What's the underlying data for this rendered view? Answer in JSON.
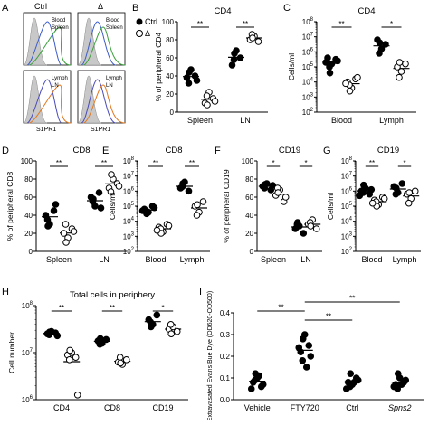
{
  "panel_letters": [
    "A",
    "B",
    "C",
    "D",
    "E",
    "F",
    "G",
    "H",
    "I"
  ],
  "panel_a": {
    "ctrl_label": "Ctrl",
    "delta_label": "Δ",
    "xlabel": "S1PR1",
    "top_legend": [
      "Blood",
      "Spleen"
    ],
    "bottom_legend": [
      "Lymph",
      "LN"
    ],
    "colors": {
      "blood": "#3c5cc8",
      "spleen": "#3ca03c",
      "lymph": "#4a4ab8",
      "ln": "#e07820",
      "iso": "#c8c8c8"
    }
  },
  "legend_b": {
    "ctrl": "Ctrl",
    "delta": "Δ"
  },
  "chart_data": [
    {
      "id": "B",
      "type": "scatter",
      "title": "CD4",
      "ylabel": "% of peripheral CD4",
      "categories": [
        "Spleen",
        "LN"
      ],
      "ylim": [
        0,
        100
      ],
      "yticks": [
        0,
        20,
        40,
        60,
        80,
        100
      ],
      "log": false,
      "series": [
        {
          "name": "Ctrl",
          "values": [
            [
              38,
              47,
              40,
              32,
              44,
              35
            ],
            [
              52,
              68,
              60,
              58,
              65
            ]
          ]
        },
        {
          "name": "Δ",
          "values": [
            [
              10,
              22,
              15,
              18,
              8,
              12
            ],
            [
              80,
              84,
              78,
              86,
              82
            ]
          ]
        }
      ],
      "sig": [
        "**",
        "**"
      ]
    },
    {
      "id": "C",
      "type": "scatter",
      "title": "CD4",
      "ylabel": "Cells/ml",
      "categories": [
        "Blood",
        "Lymph"
      ],
      "ylim": [
        2,
        8
      ],
      "yticks": [
        2,
        3,
        4,
        5,
        6,
        7,
        8
      ],
      "log": true,
      "series": [
        {
          "name": "Ctrl",
          "values": [
            [
              5.6,
              5.2,
              5.5,
              5.0,
              4.6,
              5.4,
              5.3
            ],
            [
              6.8,
              6.2,
              6.5,
              5.9,
              6.6
            ]
          ]
        },
        {
          "name": "Δ",
          "values": [
            [
              4.0,
              3.6,
              4.2,
              3.8,
              3.4,
              4.3,
              3.9
            ],
            [
              5.0,
              4.7,
              5.2,
              4.3,
              5.3
            ]
          ]
        }
      ],
      "sig": [
        "**",
        "*"
      ]
    },
    {
      "id": "D",
      "type": "scatter",
      "title": "CD8",
      "ylabel": "% of peripheral CD8",
      "categories": [
        "Spleen",
        "LN"
      ],
      "ylim": [
        0,
        100
      ],
      "yticks": [
        0,
        20,
        40,
        60,
        80,
        100
      ],
      "log": false,
      "series": [
        {
          "name": "Ctrl",
          "values": [
            [
              40,
              30,
              45,
              35,
              28,
              52
            ],
            [
              60,
              50,
              65,
              55,
              58,
              48
            ]
          ]
        },
        {
          "name": "Δ",
          "values": [
            [
              20,
              15,
              25,
              30,
              10,
              22
            ],
            [
              70,
              80,
              75,
              66,
              85,
              72
            ]
          ]
        }
      ],
      "sig": [
        "**",
        "**"
      ]
    },
    {
      "id": "E",
      "type": "scatter",
      "title": "CD8",
      "ylabel": "Cells/ml",
      "categories": [
        "Blood",
        "Lymph"
      ],
      "ylim": [
        2,
        8
      ],
      "yticks": [
        2,
        3,
        4,
        5,
        6,
        7,
        8
      ],
      "log": true,
      "series": [
        {
          "name": "Ctrl",
          "values": [
            [
              4.8,
              4.6,
              5.0,
              4.7,
              4.5,
              4.9,
              4.7
            ],
            [
              6.2,
              6.6,
              6.0,
              6.3,
              6.5
            ]
          ]
        },
        {
          "name": "Δ",
          "values": [
            [
              3.6,
              3.3,
              3.8,
              3.5,
              3.2,
              3.7,
              3.4
            ],
            [
              5.0,
              4.6,
              5.3,
              4.4,
              5.1
            ]
          ]
        }
      ],
      "sig": [
        "**",
        "**"
      ]
    },
    {
      "id": "F",
      "type": "scatter",
      "title": "CD19",
      "ylabel": "% of peripheral CD19",
      "categories": [
        "Spleen",
        "LN"
      ],
      "ylim": [
        0,
        100
      ],
      "yticks": [
        0,
        20,
        40,
        60,
        80,
        100
      ],
      "log": false,
      "series": [
        {
          "name": "Ctrl",
          "values": [
            [
              72,
              75,
              68,
              70,
              74,
              73
            ],
            [
              25,
              28,
              20,
              30,
              32
            ]
          ]
        },
        {
          "name": "Δ",
          "values": [
            [
              62,
              68,
              55,
              70,
              65,
              60
            ],
            [
              30,
              35,
              25,
              32,
              28
            ]
          ]
        }
      ],
      "sig": [
        "*",
        "*"
      ]
    },
    {
      "id": "G",
      "type": "scatter",
      "title": "CD19",
      "ylabel": "Cells/ml",
      "categories": [
        "Blood",
        "Lymph"
      ],
      "ylim": [
        2,
        8
      ],
      "yticks": [
        2,
        3,
        4,
        5,
        6,
        7,
        8
      ],
      "log": true,
      "series": [
        {
          "name": "Ctrl",
          "values": [
            [
              6.0,
              6.2,
              5.8,
              5.9,
              6.4,
              6.1,
              5.7
            ],
            [
              6.3,
              5.9,
              6.5,
              5.8,
              6.2
            ]
          ]
        },
        {
          "name": "Δ",
          "values": [
            [
              5.4,
              5.1,
              5.6,
              5.3,
              5.0,
              5.5,
              5.2
            ],
            [
              5.8,
              5.5,
              6.0,
              5.2,
              5.9
            ]
          ]
        }
      ],
      "sig": [
        "**",
        "*"
      ]
    },
    {
      "id": "H",
      "type": "scatter",
      "title": "Total cells in periphery",
      "ylabel": "Cell number",
      "categories": [
        "CD4",
        "CD8",
        "CD19"
      ],
      "ylim": [
        6,
        8
      ],
      "yticks": [
        6,
        7,
        8
      ],
      "log": true,
      "series": [
        {
          "name": "Ctrl",
          "values": [
            [
              7.4,
              7.45,
              7.42,
              7.38,
              7.44,
              7.36
            ],
            [
              7.25,
              7.2,
              7.28,
              7.18,
              7.3
            ],
            [
              7.7,
              7.6,
              7.8,
              7.65,
              7.55
            ]
          ]
        },
        {
          "name": "Δ",
          "values": [
            [
              6.95,
              7.0,
              6.9,
              6.85,
              7.05,
              6.1
            ],
            [
              6.8,
              6.75,
              6.85,
              6.9,
              6.78
            ],
            [
              7.5,
              7.55,
              7.45,
              7.6,
              7.4
            ]
          ]
        }
      ],
      "sig": [
        "**",
        "**",
        "*"
      ]
    },
    {
      "id": "I",
      "type": "scatter",
      "title": "",
      "ylabel": "Extravasated Evans Bue Dye (OD620-OD500)",
      "categories": [
        "Vehicle",
        "FTY720",
        "Ctrl",
        "Spns2"
      ],
      "ylim": [
        0,
        0.4
      ],
      "yticks": [
        0,
        0.1,
        0.2,
        0.3,
        0.4
      ],
      "log": false,
      "series": [
        {
          "name": "Ctrl",
          "values": [
            [
              0.08,
              0.1,
              0.06,
              0.09,
              0.12,
              0.07,
              0.05,
              0.11
            ],
            [
              0.22,
              0.3,
              0.25,
              0.18,
              0.28,
              0.2,
              0.24,
              0.15
            ],
            [
              0.08,
              0.07,
              0.1,
              0.06,
              0.12,
              0.09,
              0.05,
              0.08
            ],
            [
              0.07,
              0.1,
              0.08,
              0.05,
              0.12,
              0.09,
              0.06,
              0.07
            ]
          ]
        }
      ],
      "sig_brackets": [
        {
          "from": 0,
          "to": 1,
          "label": "**"
        },
        {
          "from": 1,
          "to": 2,
          "label": "**"
        },
        {
          "from": 1,
          "to": 3,
          "label": "**"
        }
      ]
    }
  ]
}
